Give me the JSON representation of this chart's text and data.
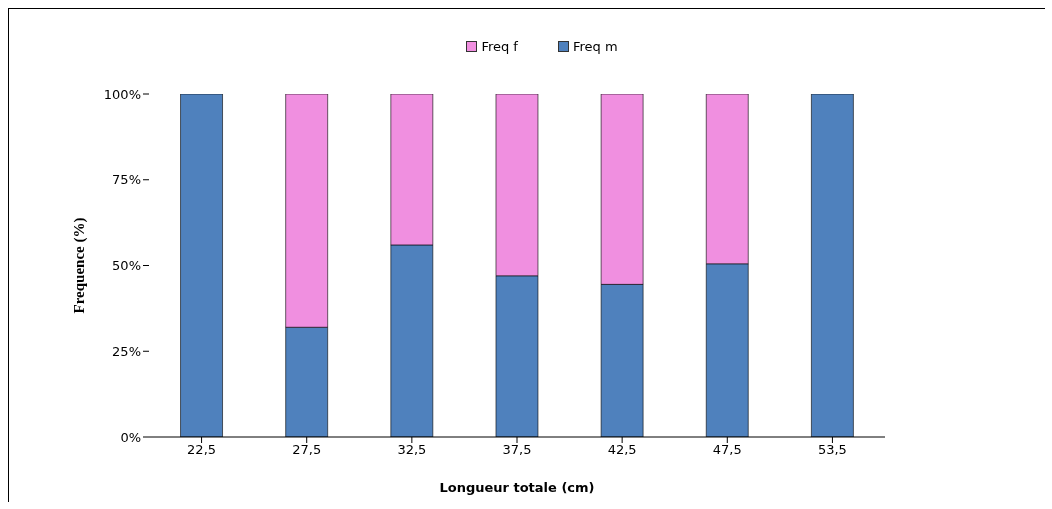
{
  "chart_data": {
    "type": "bar",
    "stacked": true,
    "categories": [
      "22,5",
      "27,5",
      "32,5",
      "37,5",
      "42,5",
      "47,5",
      "53,5"
    ],
    "series": [
      {
        "name": "Freq m",
        "color": "#4f81bd",
        "values": [
          100,
          32,
          56,
          47,
          44.5,
          50.5,
          100
        ]
      },
      {
        "name": "Freq f",
        "color": "#f08fe0",
        "values": [
          0,
          68,
          44,
          53,
          55.5,
          49.5,
          0
        ]
      }
    ],
    "ylim": [
      0,
      100
    ],
    "yticks": [
      {
        "value": 0,
        "label": "0%"
      },
      {
        "value": 25,
        "label": "25%"
      },
      {
        "value": 50,
        "label": "50%"
      },
      {
        "value": 75,
        "label": "75%"
      },
      {
        "value": 100,
        "label": "100%"
      }
    ],
    "xlabel": "Longueur totale (cm)",
    "ylabel": "Frequence (%)",
    "legend": "top",
    "grid": false
  }
}
